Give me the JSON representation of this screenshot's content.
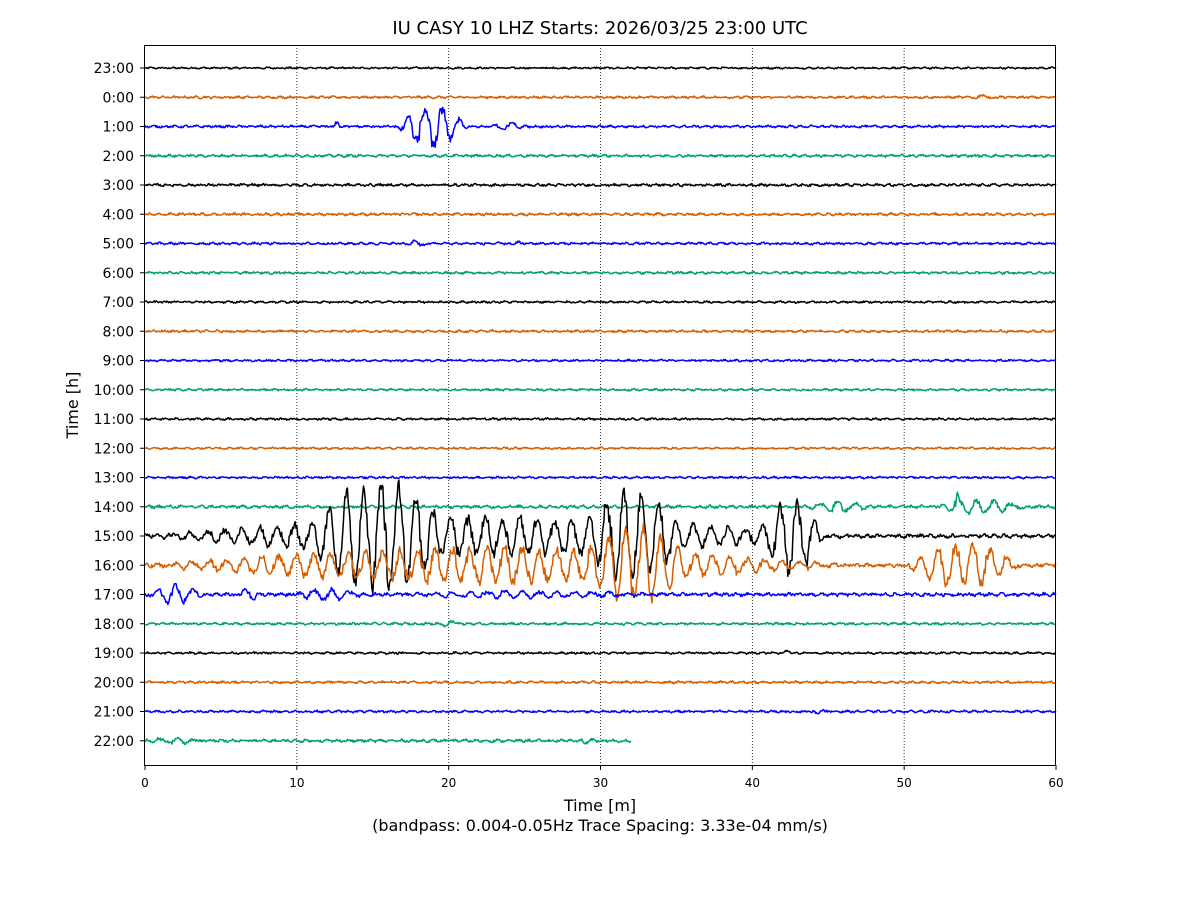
{
  "chart_data": {
    "type": "line",
    "title": "IU CASY 10 LHZ  Starts: 2026/03/25 23:00 UTC",
    "xlabel": "Time [m]",
    "ylabel": "Time [h]",
    "subtitle": "(bandpass: 0.004-0.05Hz  Trace Spacing: 3.33e-04 mm/s)",
    "xlim": [
      0,
      60
    ],
    "x_ticks": [
      "0",
      "10",
      "20",
      "30",
      "40",
      "50",
      "60"
    ],
    "grid": "vertical dotted at x ticks",
    "trace_colors": [
      "#000000",
      "#d55e00",
      "#0000ff",
      "#009e73"
    ],
    "series": [
      {
        "label": "23:00",
        "end_minute": 60,
        "noise": 0.7,
        "events": []
      },
      {
        "label": "0:00",
        "end_minute": 60,
        "noise": 0.9,
        "events": [
          {
            "start": 54.5,
            "end": 56.5,
            "amp": 2.5
          }
        ]
      },
      {
        "label": "1:00",
        "end_minute": 60,
        "noise": 0.9,
        "events": [
          {
            "start": 12.3,
            "end": 13.0,
            "amp": 6
          },
          {
            "start": 16.5,
            "end": 22.8,
            "amp": 22
          },
          {
            "start": 22.8,
            "end": 25.5,
            "amp": 5
          }
        ]
      },
      {
        "label": "2:00",
        "end_minute": 60,
        "noise": 1.0,
        "events": []
      },
      {
        "label": "3:00",
        "end_minute": 60,
        "noise": 1.0,
        "events": []
      },
      {
        "label": "4:00",
        "end_minute": 60,
        "noise": 1.0,
        "events": []
      },
      {
        "label": "5:00",
        "end_minute": 60,
        "noise": 0.9,
        "events": [
          {
            "start": 17.0,
            "end": 19.5,
            "amp": 3
          },
          {
            "start": 24.0,
            "end": 25.0,
            "amp": 2.5
          }
        ]
      },
      {
        "label": "6:00",
        "end_minute": 60,
        "noise": 0.9,
        "events": []
      },
      {
        "label": "7:00",
        "end_minute": 60,
        "noise": 0.8,
        "events": []
      },
      {
        "label": "8:00",
        "end_minute": 60,
        "noise": 0.9,
        "events": []
      },
      {
        "label": "9:00",
        "end_minute": 60,
        "noise": 0.8,
        "events": []
      },
      {
        "label": "10:00",
        "end_minute": 60,
        "noise": 0.8,
        "events": []
      },
      {
        "label": "11:00",
        "end_minute": 60,
        "noise": 0.8,
        "events": []
      },
      {
        "label": "12:00",
        "end_minute": 60,
        "noise": 0.8,
        "events": []
      },
      {
        "label": "13:00",
        "end_minute": 60,
        "noise": 0.8,
        "events": []
      },
      {
        "label": "14:00",
        "end_minute": 60,
        "noise": 1.2,
        "events": [
          {
            "start": 43.5,
            "end": 49.0,
            "amp": 6
          },
          {
            "start": 52.0,
            "end": 60.0,
            "amp": 8
          },
          {
            "start": 53.2,
            "end": 53.8,
            "amp": 18
          }
        ]
      },
      {
        "label": "15:00",
        "end_minute": 60,
        "noise": 1.5,
        "events": [
          {
            "start": 0.0,
            "end": 60.0,
            "amp": 22
          },
          {
            "start": 11.0,
            "end": 22.0,
            "amp": 48
          },
          {
            "start": 29.0,
            "end": 37.0,
            "amp": 36
          },
          {
            "start": 40.5,
            "end": 46.0,
            "amp": 38
          }
        ]
      },
      {
        "label": "16:00",
        "end_minute": 60,
        "noise": 1.5,
        "events": [
          {
            "start": 0.0,
            "end": 60.0,
            "amp": 20
          },
          {
            "start": 29.0,
            "end": 38.0,
            "amp": 30
          },
          {
            "start": 50.0,
            "end": 60.0,
            "amp": 26
          }
        ]
      },
      {
        "label": "17:00",
        "end_minute": 60,
        "noise": 1.3,
        "events": [
          {
            "start": 0.2,
            "end": 5.0,
            "amp": 13
          },
          {
            "start": 6.0,
            "end": 8.0,
            "amp": 8
          },
          {
            "start": 9.5,
            "end": 16.0,
            "amp": 6
          },
          {
            "start": 16.0,
            "end": 40.0,
            "amp": 4
          }
        ]
      },
      {
        "label": "18:00",
        "end_minute": 60,
        "noise": 0.9,
        "events": [
          {
            "start": 19.5,
            "end": 21.0,
            "amp": 4
          }
        ]
      },
      {
        "label": "19:00",
        "end_minute": 60,
        "noise": 0.8,
        "events": [
          {
            "start": 39.5,
            "end": 40.0,
            "amp": 3
          },
          {
            "start": 42.0,
            "end": 43.0,
            "amp": 4
          }
        ]
      },
      {
        "label": "20:00",
        "end_minute": 60,
        "noise": 0.9,
        "events": []
      },
      {
        "label": "21:00",
        "end_minute": 60,
        "noise": 0.9,
        "events": [
          {
            "start": 44.0,
            "end": 45.0,
            "amp": 3
          }
        ]
      },
      {
        "label": "22:00",
        "end_minute": 32,
        "noise": 1.1,
        "events": [
          {
            "start": 0.0,
            "end": 5.0,
            "amp": 3
          },
          {
            "start": 28.5,
            "end": 30.0,
            "amp": 3
          }
        ]
      }
    ]
  }
}
